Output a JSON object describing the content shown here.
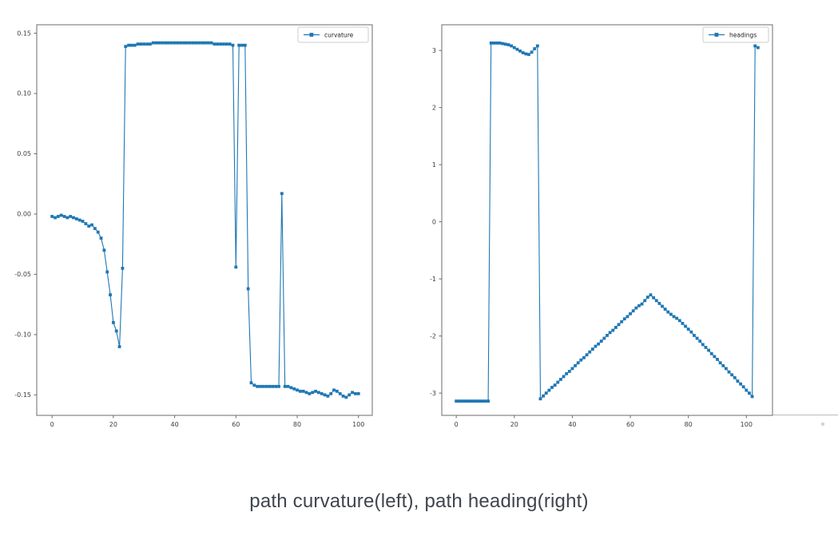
{
  "page": {
    "background": "#ffffff",
    "caption": "path curvature(left), path heading(right)"
  },
  "styles": {
    "line_color": "#1f77b4",
    "spine_color": "#6b6b6b",
    "tick_label_color": "#3d3d3d",
    "caption_color": "#3f454d",
    "legend_border_color": "#cccccc",
    "legend_background": "#ffffff"
  },
  "chart_data": [
    {
      "type": "line",
      "title": "",
      "legend_position": "upper right",
      "legend_label": "curvature",
      "marker": "square",
      "grid": false,
      "x_start": 0,
      "x_step": 1,
      "xlim": [
        -5,
        104.5
      ],
      "ylim": [
        -0.167,
        0.157
      ],
      "xticks": [
        {
          "v": 0,
          "label": "0"
        },
        {
          "v": 20,
          "label": "20"
        },
        {
          "v": 40,
          "label": "40"
        },
        {
          "v": 60,
          "label": "60"
        },
        {
          "v": 80,
          "label": "80"
        },
        {
          "v": 100,
          "label": "100"
        }
      ],
      "yticks": [
        {
          "v": 0.15,
          "label": "0.15"
        },
        {
          "v": 0.1,
          "label": "0.10"
        },
        {
          "v": 0.05,
          "label": "0.05"
        },
        {
          "v": 0.0,
          "label": "0.00"
        },
        {
          "v": -0.05,
          "label": "-0.05"
        },
        {
          "v": -0.1,
          "label": "-0.10"
        },
        {
          "v": -0.15,
          "label": "-0.15"
        }
      ],
      "series": [
        {
          "name": "curvature",
          "values": [
            -0.002,
            -0.003,
            -0.002,
            -0.001,
            -0.002,
            -0.003,
            -0.002,
            -0.003,
            -0.004,
            -0.005,
            -0.006,
            -0.008,
            -0.01,
            -0.009,
            -0.012,
            -0.015,
            -0.02,
            -0.03,
            -0.048,
            -0.067,
            -0.09,
            -0.097,
            -0.11,
            -0.045,
            0.139,
            0.14,
            0.14,
            0.14,
            0.141,
            0.141,
            0.141,
            0.141,
            0.141,
            0.142,
            0.142,
            0.142,
            0.142,
            0.142,
            0.142,
            0.142,
            0.142,
            0.142,
            0.142,
            0.142,
            0.142,
            0.142,
            0.142,
            0.142,
            0.142,
            0.142,
            0.142,
            0.142,
            0.142,
            0.141,
            0.141,
            0.141,
            0.141,
            0.141,
            0.141,
            0.14,
            -0.044,
            0.14,
            0.14,
            0.14,
            -0.062,
            -0.14,
            -0.142,
            -0.143,
            -0.143,
            -0.143,
            -0.143,
            -0.143,
            -0.143,
            -0.143,
            -0.143,
            0.017,
            -0.143,
            -0.143,
            -0.144,
            -0.145,
            -0.146,
            -0.147,
            -0.147,
            -0.148,
            -0.149,
            -0.148,
            -0.147,
            -0.148,
            -0.149,
            -0.15,
            -0.151,
            -0.149,
            -0.146,
            -0.147,
            -0.149,
            -0.151,
            -0.152,
            -0.15,
            -0.148,
            -0.149,
            -0.149
          ]
        }
      ]
    },
    {
      "type": "line",
      "title": "",
      "legend_position": "upper right",
      "legend_label": "headings",
      "marker": "square",
      "grid": false,
      "x_start": 0,
      "x_step": 1,
      "xlim": [
        -5,
        109
      ],
      "ylim": [
        -3.39,
        3.45
      ],
      "xticks": [
        {
          "v": 0,
          "label": "0"
        },
        {
          "v": 20,
          "label": "20"
        },
        {
          "v": 40,
          "label": "40"
        },
        {
          "v": 60,
          "label": "60"
        },
        {
          "v": 80,
          "label": "80"
        },
        {
          "v": 100,
          "label": "100"
        }
      ],
      "yticks": [
        {
          "v": 3,
          "label": "3"
        },
        {
          "v": 2,
          "label": "2"
        },
        {
          "v": 1,
          "label": "1"
        },
        {
          "v": 0,
          "label": "0"
        },
        {
          "v": -1,
          "label": "-1"
        },
        {
          "v": -2,
          "label": "-2"
        },
        {
          "v": -3,
          "label": "-3"
        }
      ],
      "series": [
        {
          "name": "headings",
          "values": [
            -3.14,
            -3.14,
            -3.14,
            -3.14,
            -3.14,
            -3.14,
            -3.14,
            -3.14,
            -3.14,
            -3.14,
            -3.14,
            -3.14,
            3.13,
            3.13,
            3.13,
            3.13,
            3.12,
            3.11,
            3.1,
            3.08,
            3.05,
            3.02,
            2.99,
            2.96,
            2.94,
            2.93,
            2.97,
            3.03,
            3.08,
            -3.1,
            -3.05,
            -3.0,
            -2.95,
            -2.9,
            -2.86,
            -2.81,
            -2.76,
            -2.71,
            -2.66,
            -2.62,
            -2.57,
            -2.52,
            -2.47,
            -2.42,
            -2.38,
            -2.33,
            -2.28,
            -2.23,
            -2.18,
            -2.14,
            -2.09,
            -2.04,
            -1.99,
            -1.94,
            -1.9,
            -1.85,
            -1.8,
            -1.75,
            -1.7,
            -1.66,
            -1.61,
            -1.56,
            -1.51,
            -1.47,
            -1.44,
            -1.38,
            -1.32,
            -1.28,
            -1.33,
            -1.38,
            -1.43,
            -1.48,
            -1.53,
            -1.58,
            -1.62,
            -1.66,
            -1.69,
            -1.73,
            -1.78,
            -1.83,
            -1.88,
            -1.93,
            -1.99,
            -2.04,
            -2.09,
            -2.15,
            -2.2,
            -2.25,
            -2.31,
            -2.36,
            -2.41,
            -2.47,
            -2.52,
            -2.57,
            -2.63,
            -2.68,
            -2.73,
            -2.79,
            -2.84,
            -2.89,
            -2.95,
            -3.0,
            -3.06,
            3.08,
            3.05
          ]
        }
      ]
    }
  ]
}
